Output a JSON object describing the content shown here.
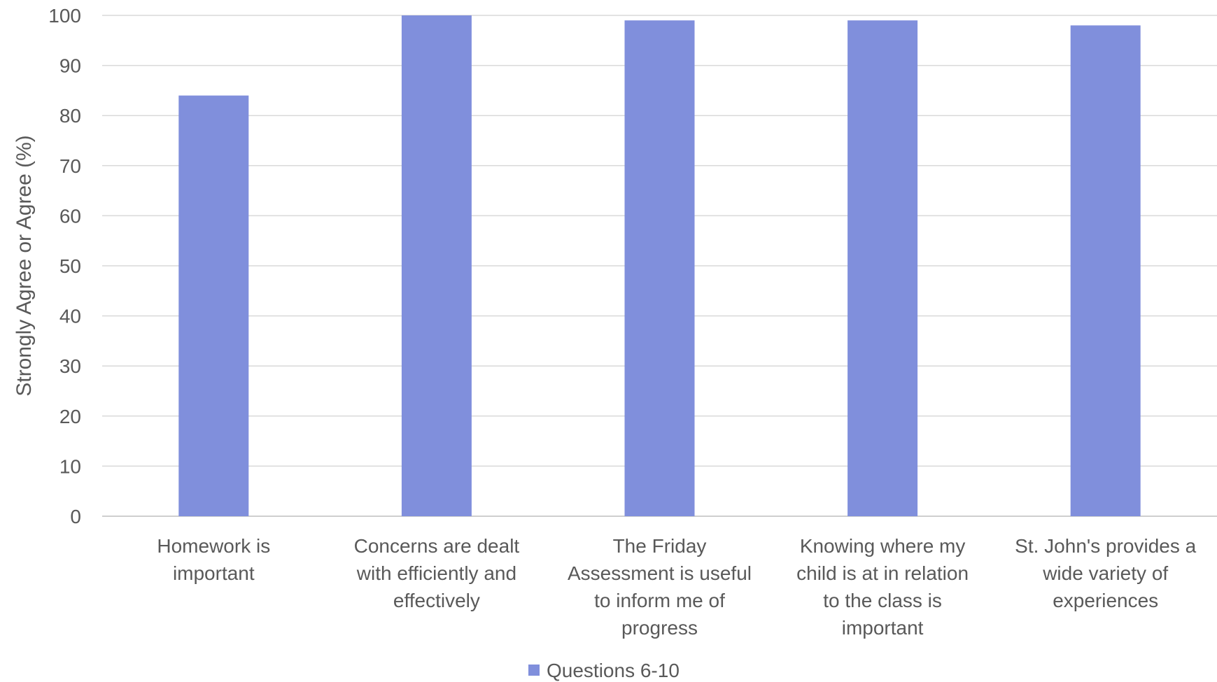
{
  "chart_data": {
    "type": "bar",
    "categories": [
      [
        "Homework is",
        "important"
      ],
      [
        "Concerns are dealt",
        "with efficiently and",
        "effectively"
      ],
      [
        "The Friday",
        "Assessment is useful",
        "to inform me of",
        "progress"
      ],
      [
        "Knowing where my",
        "child is at in relation",
        "to the class is",
        "important"
      ],
      [
        "St. John's provides a",
        "wide variety of",
        "experiences"
      ]
    ],
    "series": [
      {
        "name": "Questions 6-10",
        "values": [
          84,
          100,
          99,
          99,
          98
        ],
        "color": "#808fdc"
      }
    ],
    "title": "",
    "xlabel": "",
    "ylabel": "Strongly Agree or Agree (%)",
    "ylim": [
      0,
      100
    ],
    "yticks": [
      0,
      10,
      20,
      30,
      40,
      50,
      60,
      70,
      80,
      90,
      100
    ],
    "grid": true,
    "legend": "bottom-center"
  }
}
